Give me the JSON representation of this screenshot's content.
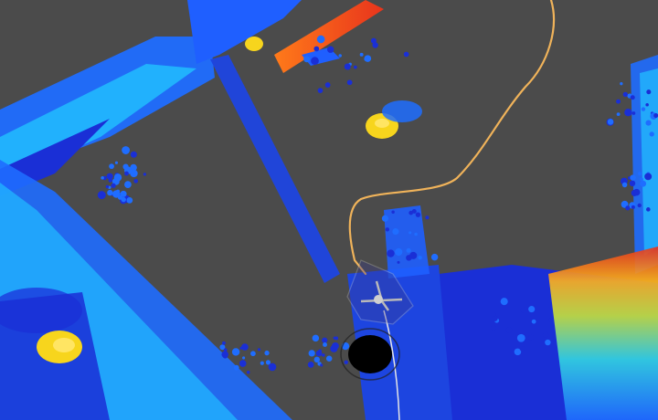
{
  "viewer": {
    "background": "#4b4b4b",
    "pointcloud_colormap": [
      "#1a2fd6",
      "#1f6dff",
      "#22c3ff",
      "#45e0c0",
      "#b5e83a",
      "#f7d51d",
      "#ff7a1a",
      "#e8341c"
    ],
    "trajectory_color": "#f0b35a",
    "robot_marker_color": "#b9b9b9",
    "obstacle_color": "#000000",
    "icons": [
      "robot-pose-icon",
      "goal-marker-icon"
    ]
  }
}
